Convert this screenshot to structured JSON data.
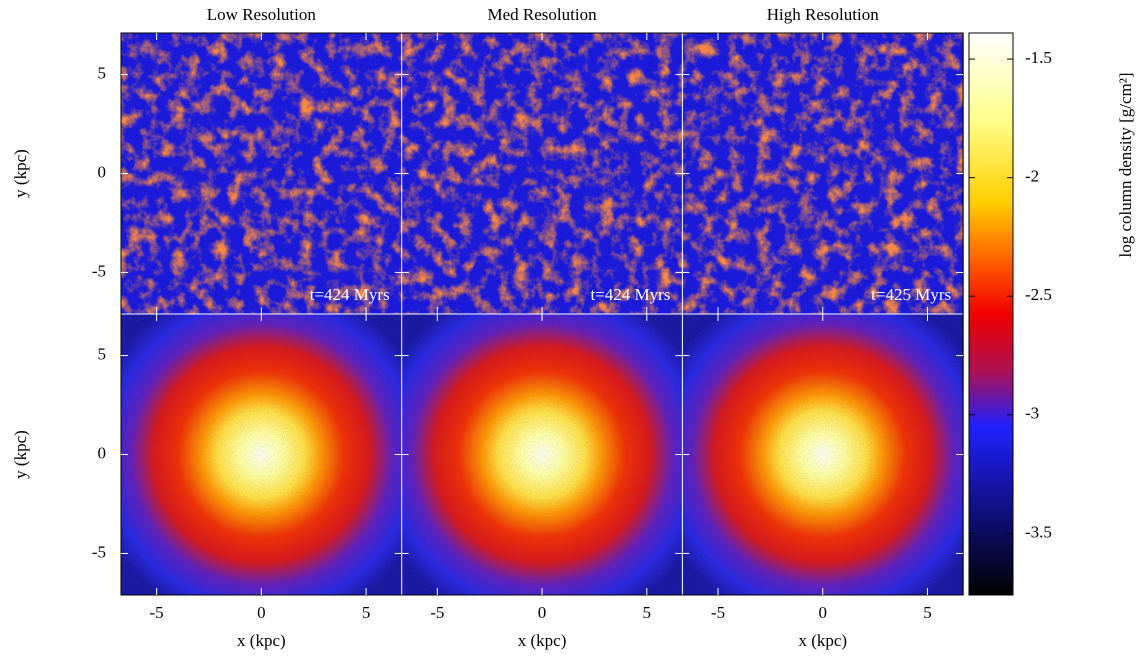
{
  "chart_data": {
    "type": "image",
    "panel_titles": [
      "Low Resolution",
      "Med Resolution",
      "High Resolution"
    ],
    "annotations": [
      "t=424 Myrs",
      "t=424 Myrs",
      "t=425 Myrs"
    ],
    "xlabel": "x (kpc)",
    "ylabel": "y (kpc)",
    "xlim": [
      -6.7,
      6.7
    ],
    "xticks": [
      -5,
      0,
      5
    ],
    "ylim": [
      -7.1,
      7.1
    ],
    "yticks": [
      -5,
      0,
      5
    ],
    "colorbar": {
      "label": "log column density [g/cm²]",
      "clim": [
        -3.76,
        -1.39
      ],
      "ticks": [
        -1.5,
        -2,
        -2.5,
        -3,
        -3.5
      ]
    }
  }
}
